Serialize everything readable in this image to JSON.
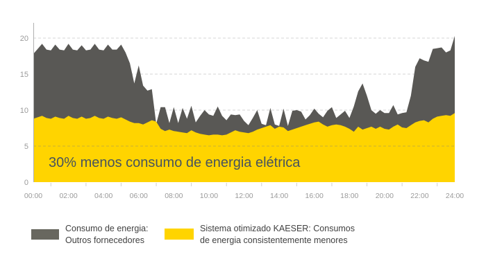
{
  "annotation": {
    "text": "30% menos consumo de energia elétrica"
  },
  "legend": {
    "items": [
      {
        "name": "gray",
        "color": "#68675f",
        "line1": "Consumo de energia:",
        "line2": "Outros fornecedores"
      },
      {
        "name": "yellow",
        "color": "#FFD400",
        "line1": "Sistema otimizado KAESER: Consumos",
        "line2": "de energia consistentemente menores"
      }
    ]
  },
  "axes": {
    "y_tick_labels": [
      "0",
      "5",
      "10",
      "15",
      "20"
    ],
    "x_tick_labels": [
      "00:00",
      "02:00",
      "04:00",
      "06:00",
      "08:00",
      "10:00",
      "12:00",
      "14:00",
      "16:00",
      "18:00",
      "20:00",
      "22:00",
      "24:00"
    ]
  },
  "colors": {
    "gray_area": "#595855",
    "yellow_area": "#FFD400",
    "grid": "#d6d6d6",
    "grid_overlay": "rgba(125,125,125,0.40)",
    "axis_line": "#b0b0b0",
    "tick_mark": "#cfcfcf",
    "tick_label": "#9a9a9a",
    "annotation_text": "#47535e",
    "legend_text": "#404040"
  },
  "chart_data": {
    "type": "area",
    "title": "",
    "xlabel": "",
    "ylabel": "",
    "x_unit": "hour of day",
    "xlim": [
      0,
      24
    ],
    "ylim": [
      0,
      21.5
    ],
    "yticks": [
      0,
      5,
      10,
      15,
      20
    ],
    "xticks_hours": [
      0,
      2,
      4,
      6,
      8,
      10,
      12,
      14,
      16,
      18,
      20,
      22,
      24
    ],
    "x_tick_labels": [
      "00:00",
      "02:00",
      "04:00",
      "06:00",
      "08:00",
      "10:00",
      "12:00",
      "14:00",
      "16:00",
      "18:00",
      "20:00",
      "22:00",
      "24:00"
    ],
    "grid": "horizontal dashed",
    "legend_position": "bottom",
    "annotation": "30% menos consumo de energia elétrica",
    "x": [
      0,
      0.25,
      0.5,
      0.75,
      1,
      1.25,
      1.5,
      1.75,
      2,
      2.25,
      2.5,
      2.75,
      3,
      3.25,
      3.5,
      3.75,
      4,
      4.25,
      4.5,
      4.75,
      5,
      5.25,
      5.5,
      5.75,
      6,
      6.25,
      6.5,
      6.75,
      7,
      7.25,
      7.5,
      7.75,
      8,
      8.25,
      8.5,
      8.75,
      9,
      9.25,
      9.5,
      9.75,
      10,
      10.25,
      10.5,
      10.75,
      11,
      11.25,
      11.5,
      11.75,
      12,
      12.25,
      12.5,
      12.75,
      13,
      13.25,
      13.5,
      13.75,
      14,
      14.25,
      14.5,
      14.75,
      15,
      15.25,
      15.5,
      15.75,
      16,
      16.25,
      16.5,
      16.75,
      17,
      17.25,
      17.5,
      17.75,
      18,
      18.25,
      18.5,
      18.75,
      19,
      19.25,
      19.5,
      19.75,
      20,
      20.25,
      20.5,
      20.75,
      21,
      21.25,
      21.5,
      21.75,
      22,
      22.25,
      22.5,
      22.75,
      23,
      23.25,
      23.5,
      23.75,
      24
    ],
    "series": [
      {
        "name": "Consumo de energia: Outros fornecedores",
        "color": "#595855",
        "values": [
          17.8,
          18.5,
          19.2,
          18.4,
          18.3,
          19.1,
          18.4,
          18.3,
          19.2,
          18.4,
          18.3,
          19,
          18.3,
          18.4,
          19.2,
          18.4,
          18.3,
          19.1,
          18.4,
          18.4,
          19.1,
          18,
          16.5,
          13.7,
          16.2,
          13.4,
          12.7,
          12.9,
          8.1,
          10.4,
          10.4,
          8.2,
          10.4,
          8.2,
          10.3,
          8.8,
          10.6,
          8.3,
          9.2,
          10,
          9.4,
          9.2,
          10.5,
          9.2,
          8.6,
          9.4,
          9.3,
          9.4,
          8.5,
          7.9,
          8.9,
          10,
          8.1,
          7.9,
          10.3,
          8,
          7.8,
          10.2,
          7.8,
          9.9,
          10,
          9.8,
          8.7,
          9.3,
          10.2,
          9.5,
          9,
          9.9,
          10.4,
          8.9,
          9.4,
          9.9,
          8.9,
          10.5,
          12.6,
          13.7,
          12,
          10,
          9.5,
          10,
          9.6,
          9.6,
          10.7,
          9.4,
          9.6,
          9.7,
          12,
          16,
          17.2,
          16.9,
          16.7,
          18.5,
          18.6,
          18.7,
          18,
          18.3,
          20.3
        ]
      },
      {
        "name": "Sistema otimizado KAESER: Consumos de energia consistentemente menores",
        "color": "#FFD400",
        "values": [
          8.8,
          9,
          9.2,
          8.9,
          8.8,
          9.1,
          8.9,
          8.8,
          9.2,
          8.9,
          8.8,
          9.1,
          8.8,
          8.9,
          9.2,
          8.9,
          8.8,
          9.1,
          8.9,
          8.8,
          9,
          8.7,
          8.4,
          8.2,
          8.2,
          8,
          8.3,
          8.6,
          8.4,
          7.4,
          7.1,
          7.3,
          7.1,
          7,
          6.9,
          6.8,
          7.2,
          6.9,
          6.7,
          6.6,
          6.5,
          6.6,
          6.6,
          6.5,
          6.6,
          6.9,
          7.2,
          7,
          6.9,
          6.8,
          7,
          7.3,
          7.5,
          7.7,
          7.9,
          7.4,
          7.7,
          7.6,
          7.1,
          7.3,
          7.5,
          7.7,
          7.9,
          8.1,
          8.3,
          8.4,
          8,
          7.7,
          7.9,
          8,
          7.9,
          7.7,
          7.4,
          7,
          7.7,
          7.3,
          7.5,
          7.7,
          7.4,
          7.7,
          7.4,
          7.3,
          7.7,
          8,
          7.6,
          7.5,
          7.9,
          8.3,
          8.5,
          8.6,
          8.3,
          8.8,
          9.1,
          9.2,
          9.3,
          9.2,
          9.6
        ]
      }
    ]
  }
}
